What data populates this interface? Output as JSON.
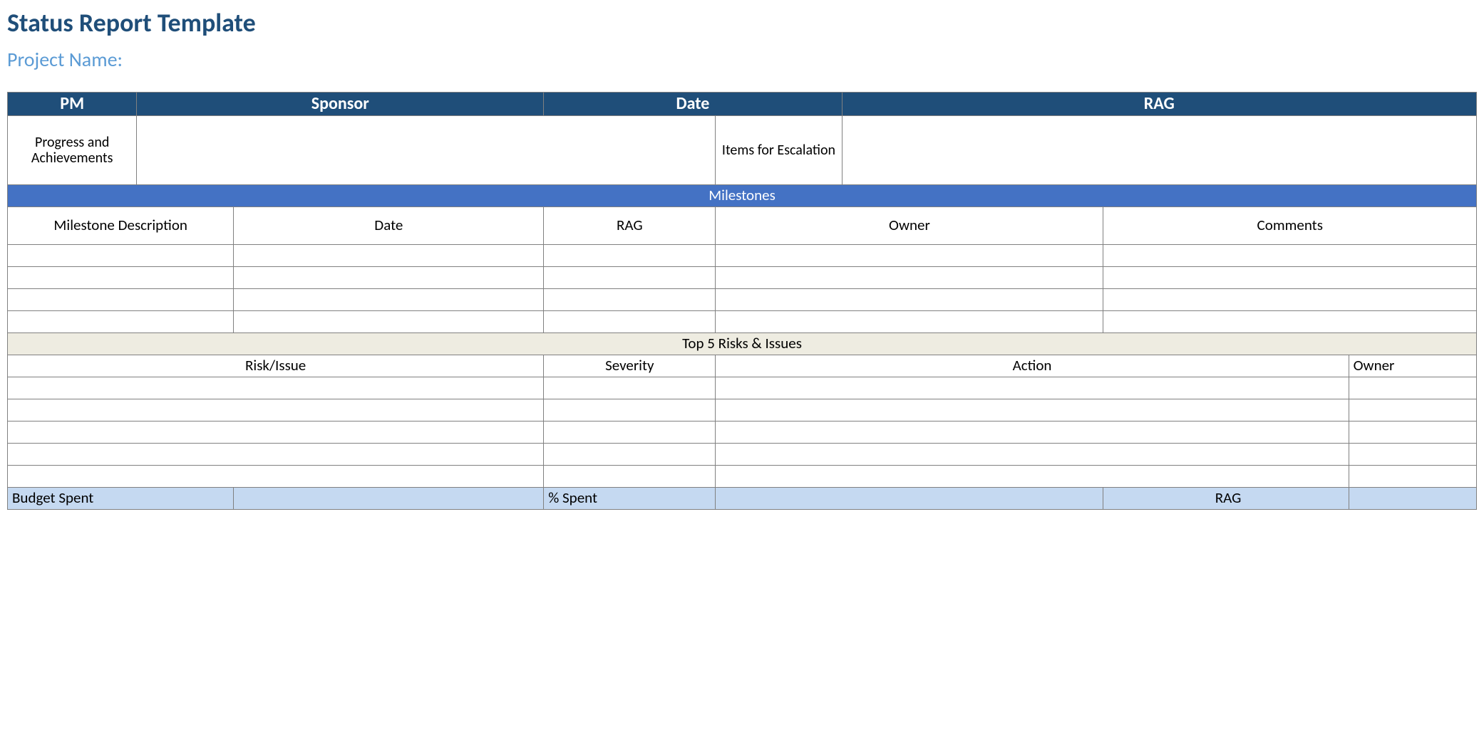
{
  "colors": {
    "title": "#1f4e79",
    "subtitle": "#5b9bd5",
    "header_bg": "#1f4e79",
    "header_fg": "#ffffff",
    "milestones_bg": "#4472c4",
    "milestones_fg": "#ffffff",
    "risks_bg": "#eeece1",
    "risks_fg": "#000000",
    "footer_bg": "#c5d9f1",
    "border": "#808080"
  },
  "fonts": {
    "family": "Calibri",
    "title_size_pt": 27,
    "subtitle_size_pt": 21,
    "header_size_pt": 18,
    "cell_size_pt": 16
  },
  "title": "Status Report Template",
  "subtitle": "Project Name:",
  "top_headers": [
    "PM",
    "Sponsor",
    "Date",
    "RAG"
  ],
  "info_labels": {
    "progress": "Progress and Achievements",
    "escalation": "Items for Escalation"
  },
  "milestones": {
    "section_label": "Milestones",
    "columns": [
      "Milestone Description",
      "Date",
      "RAG",
      "Owner",
      "Comments"
    ],
    "row_count": 4
  },
  "risks": {
    "section_label": "Top 5 Risks & Issues",
    "columns": [
      "Risk/Issue",
      "Severity",
      "Action",
      "Owner"
    ],
    "row_count": 5
  },
  "footer": {
    "budget_spent": "Budget Spent",
    "pct_spent": "% Spent",
    "rag": "RAG"
  },
  "column_widths_pct": [
    8.8,
    6.6,
    21.1,
    11.7,
    8.6,
    17.8,
    16.7,
    8.7
  ]
}
